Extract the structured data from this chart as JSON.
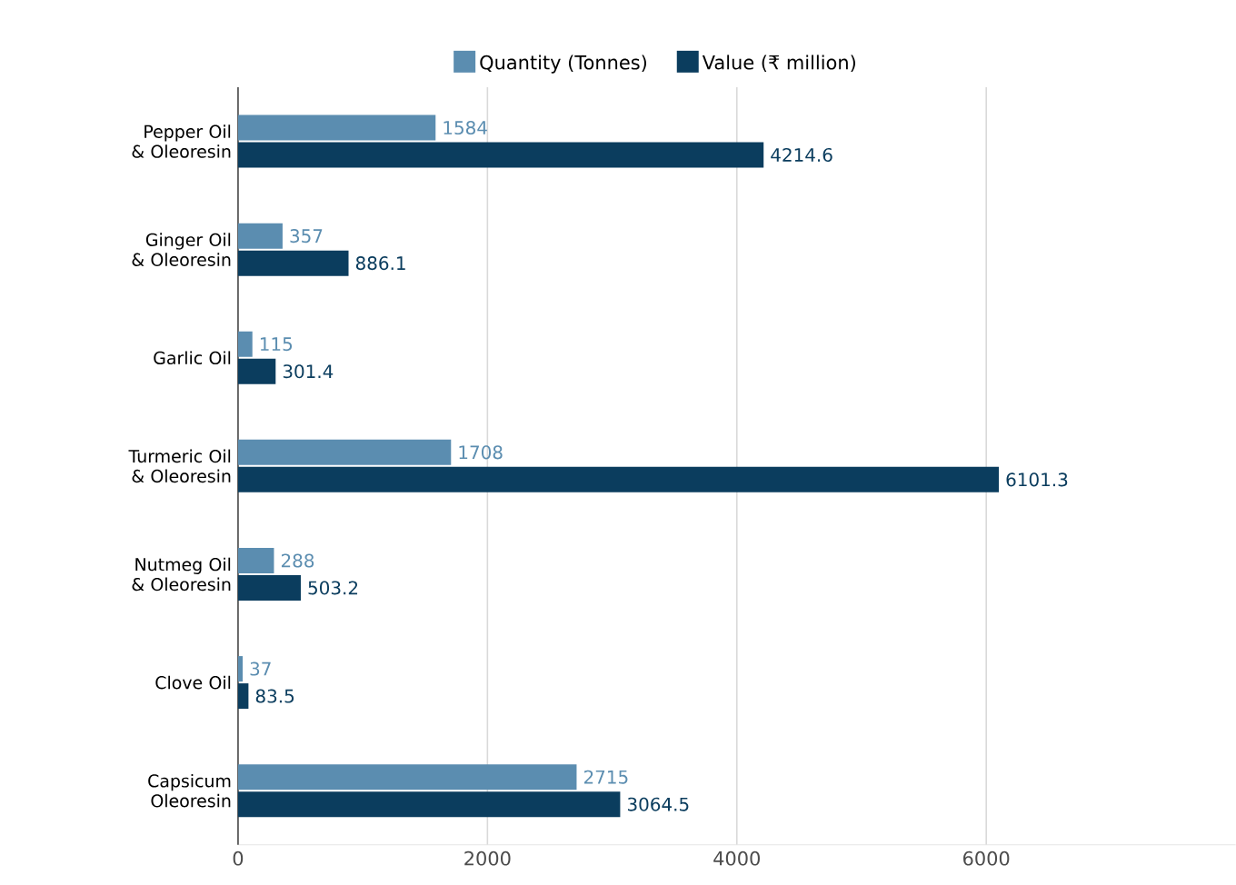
{
  "chart_data": {
    "type": "bar",
    "orientation": "horizontal",
    "categories": [
      "Pepper Oil & Oleoresin",
      "Ginger Oil & Oleoresin",
      "Garlic Oil",
      "Turmeric Oil & Oleoresin",
      "Nutmeg Oil & Oleoresin",
      "Clove Oil",
      "Capsicum Oleoresin"
    ],
    "series": [
      {
        "name": "Quantity (Tonnes)",
        "color": "#5b8db0",
        "values": [
          1584,
          357,
          115,
          1708,
          288,
          37,
          2715
        ]
      },
      {
        "name": "Value (₹ million)",
        "color": "#0b3d5e",
        "values": [
          4214.6,
          886.1,
          301.4,
          6101.3,
          503.2,
          83.5,
          3064.5
        ]
      }
    ],
    "xlim": [
      0,
      8000
    ],
    "xticks": [
      0,
      2000,
      4000,
      6000
    ],
    "grid": "x",
    "legend": "top",
    "data_labels": true
  }
}
